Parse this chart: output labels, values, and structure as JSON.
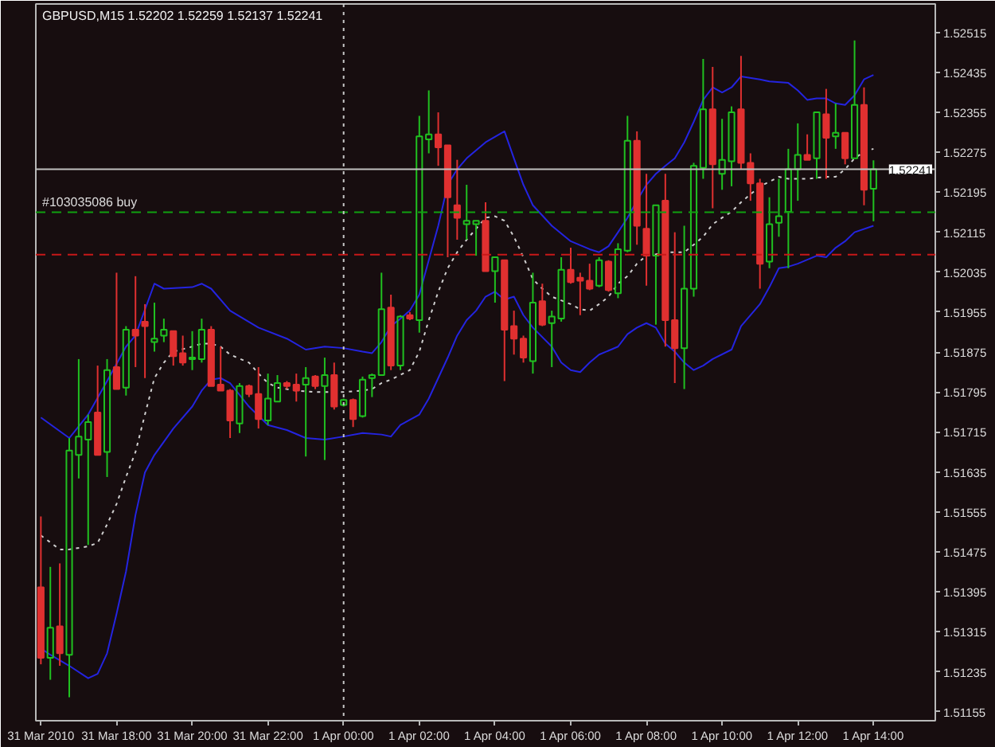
{
  "chart_data": {
    "type": "candlestick",
    "title": "GBPUSD,M15 1.52202 1.52259 1.52137 1.52241",
    "x": [
      "2010-03-31T16:00",
      "2010-03-31T16:15",
      "2010-03-31T16:30",
      "2010-03-31T16:45",
      "2010-03-31T17:00",
      "2010-03-31T17:15",
      "2010-03-31T17:30",
      "2010-03-31T17:45",
      "2010-03-31T18:00",
      "2010-03-31T18:15",
      "2010-03-31T18:30",
      "2010-03-31T18:45",
      "2010-03-31T19:00",
      "2010-03-31T19:15",
      "2010-03-31T19:30",
      "2010-03-31T19:45",
      "2010-03-31T20:00",
      "2010-03-31T20:15",
      "2010-03-31T20:30",
      "2010-03-31T20:45",
      "2010-03-31T21:00",
      "2010-03-31T21:15",
      "2010-03-31T21:30",
      "2010-03-31T21:45",
      "2010-03-31T22:00",
      "2010-03-31T22:15",
      "2010-03-31T22:30",
      "2010-03-31T22:45",
      "2010-03-31T23:00",
      "2010-03-31T23:15",
      "2010-03-31T23:30",
      "2010-03-31T23:45",
      "2010-04-01T00:00",
      "2010-04-01T00:15",
      "2010-04-01T00:30",
      "2010-04-01T00:45",
      "2010-04-01T01:00",
      "2010-04-01T01:15",
      "2010-04-01T01:30",
      "2010-04-01T01:45",
      "2010-04-01T02:00",
      "2010-04-01T02:15",
      "2010-04-01T02:30",
      "2010-04-01T02:45",
      "2010-04-01T03:00",
      "2010-04-01T03:15",
      "2010-04-01T03:30",
      "2010-04-01T03:45",
      "2010-04-01T04:00",
      "2010-04-01T04:15",
      "2010-04-01T04:30",
      "2010-04-01T04:45",
      "2010-04-01T05:00",
      "2010-04-01T05:15",
      "2010-04-01T05:30",
      "2010-04-01T05:45",
      "2010-04-01T06:00",
      "2010-04-01T06:15",
      "2010-04-01T06:30",
      "2010-04-01T06:45",
      "2010-04-01T07:00",
      "2010-04-01T07:15",
      "2010-04-01T07:30",
      "2010-04-01T07:45",
      "2010-04-01T08:00",
      "2010-04-01T08:15",
      "2010-04-01T08:30",
      "2010-04-01T08:45",
      "2010-04-01T09:00",
      "2010-04-01T09:15",
      "2010-04-01T09:30",
      "2010-04-01T09:45",
      "2010-04-01T10:00",
      "2010-04-01T10:15",
      "2010-04-01T10:30",
      "2010-04-01T10:45",
      "2010-04-01T11:00",
      "2010-04-01T11:15",
      "2010-04-01T11:30",
      "2010-04-01T11:45",
      "2010-04-01T12:00",
      "2010-04-01T12:15",
      "2010-04-01T12:30",
      "2010-04-01T12:45",
      "2010-04-01T13:00",
      "2010-04-01T13:15",
      "2010-04-01T13:30",
      "2010-04-01T13:45",
      "2010-04-01T14:00"
    ],
    "ohlc": [
      [
        1.51404,
        1.51546,
        1.5125,
        1.51263
      ],
      [
        1.51263,
        1.51445,
        1.51219,
        1.51323
      ],
      [
        1.51326,
        1.51452,
        1.51247,
        1.51272
      ],
      [
        1.51269,
        1.51703,
        1.51184,
        1.51678
      ],
      [
        1.51669,
        1.51861,
        1.51622,
        1.51706
      ],
      [
        1.517,
        1.5175,
        1.51489,
        1.51735
      ],
      [
        1.51754,
        1.51848,
        1.51669,
        1.51669
      ],
      [
        1.51675,
        1.51861,
        1.51625,
        1.51839
      ],
      [
        1.51845,
        1.52034,
        1.51801,
        1.51801
      ],
      [
        1.51804,
        1.51927,
        1.51788,
        1.5192
      ],
      [
        1.5192,
        1.52027,
        1.51845,
        1.51908
      ],
      [
        1.51936,
        1.51971,
        1.51823,
        1.51927
      ],
      [
        1.51895,
        1.51974,
        1.51876,
        1.51902
      ],
      [
        1.51908,
        1.51942,
        1.51895,
        1.5192
      ],
      [
        1.51917,
        1.51917,
        1.51848,
        1.51867
      ],
      [
        1.51873,
        1.51908,
        1.51848,
        1.51854
      ],
      [
        1.51861,
        1.51917,
        1.51839,
        1.51864
      ],
      [
        1.51861,
        1.51942,
        1.51854,
        1.5192
      ],
      [
        1.5192,
        1.51927,
        1.51807,
        1.51807
      ],
      [
        1.5181,
        1.51886,
        1.51798,
        1.51798
      ],
      [
        1.51798,
        1.51801,
        1.51703,
        1.51738
      ],
      [
        1.51732,
        1.51813,
        1.51713,
        1.51807
      ],
      [
        1.51807,
        1.5181,
        1.51785,
        1.51791
      ],
      [
        1.51791,
        1.51845,
        1.51722,
        1.51741
      ],
      [
        1.51738,
        1.51832,
        1.51729,
        1.51782
      ],
      [
        1.51776,
        1.51829,
        1.51776,
        1.51813
      ],
      [
        1.51813,
        1.51817,
        1.51801,
        1.51807
      ],
      [
        1.5181,
        1.51832,
        1.51776,
        1.51798
      ],
      [
        1.5181,
        1.51845,
        1.51666,
        1.51823
      ],
      [
        1.51826,
        1.51829,
        1.51801,
        1.51807
      ],
      [
        1.51807,
        1.51864,
        1.51659,
        1.51829
      ],
      [
        1.51829,
        1.51854,
        1.5176,
        1.51766
      ],
      [
        1.51769,
        1.51782,
        1.51766,
        1.51779
      ],
      [
        1.51779,
        1.51782,
        1.51725,
        1.51741
      ],
      [
        1.51747,
        1.51826,
        1.51744,
        1.5182
      ],
      [
        1.51823,
        1.51832,
        1.51785,
        1.51829
      ],
      [
        1.51829,
        1.52034,
        1.51829,
        1.51961
      ],
      [
        1.51964,
        1.5199,
        1.51839,
        1.51848
      ],
      [
        1.51848,
        1.51949,
        1.51839,
        1.51946
      ],
      [
        1.51949,
        1.51955,
        1.51939,
        1.51942
      ],
      [
        1.51939,
        1.52348,
        1.51914,
        1.52307
      ],
      [
        1.52301,
        1.52399,
        1.52273,
        1.52311
      ],
      [
        1.52311,
        1.52355,
        1.52248,
        1.52285
      ],
      [
        1.52289,
        1.52289,
        1.52065,
        1.52185
      ],
      [
        1.52169,
        1.5226,
        1.521,
        1.52144
      ],
      [
        1.52131,
        1.5221,
        1.521,
        1.52138
      ],
      [
        1.52131,
        1.52138,
        1.52068,
        1.52138
      ],
      [
        1.52138,
        1.52175,
        1.52037,
        1.52037
      ],
      [
        1.52037,
        1.52065,
        1.51974,
        1.52065
      ],
      [
        1.52059,
        1.52059,
        1.51817,
        1.5192
      ],
      [
        1.51927,
        1.51958,
        1.5187,
        1.51902
      ],
      [
        1.51902,
        1.51908,
        1.51854,
        1.51864
      ],
      [
        1.51857,
        1.52034,
        1.51832,
        1.51974
      ],
      [
        1.51977,
        1.52012,
        1.51927,
        1.5193
      ],
      [
        1.51933,
        1.51958,
        1.51845,
        1.51946
      ],
      [
        1.51942,
        1.52065,
        1.51936,
        1.5204
      ],
      [
        1.5204,
        1.52084,
        1.52012,
        1.52015
      ],
      [
        1.52024,
        1.52034,
        1.51949,
        1.52018
      ],
      [
        1.52018,
        1.52052,
        1.51999,
        1.52002
      ],
      [
        1.52008,
        1.52065,
        1.52005,
        1.52059
      ],
      [
        1.52056,
        1.52059,
        1.51996,
        1.51999
      ],
      [
        1.51993,
        1.52093,
        1.51983,
        1.52081
      ],
      [
        1.52078,
        1.52348,
        1.52075,
        1.52298
      ],
      [
        1.52298,
        1.52317,
        1.5209,
        1.52128
      ],
      [
        1.52122,
        1.52232,
        1.52008,
        1.52068
      ],
      [
        1.52068,
        1.52169,
        1.5193,
        1.52169
      ],
      [
        1.52178,
        1.52232,
        1.51886,
        1.51939
      ],
      [
        1.51939,
        1.52115,
        1.51813,
        1.51883
      ],
      [
        1.51883,
        1.52128,
        1.51801,
        1.52002
      ],
      [
        1.52002,
        1.52254,
        1.51986,
        1.52248
      ],
      [
        1.52244,
        1.52462,
        1.52222,
        1.52361
      ],
      [
        1.52361,
        1.52446,
        1.52163,
        1.52251
      ],
      [
        1.52232,
        1.52342,
        1.522,
        1.5226
      ],
      [
        1.52257,
        1.52367,
        1.52207,
        1.52355
      ],
      [
        1.52361,
        1.52468,
        1.52241,
        1.52254
      ],
      [
        1.52254,
        1.52273,
        1.52178,
        1.52213
      ],
      [
        1.52213,
        1.52222,
        1.52002,
        1.52052
      ],
      [
        1.52056,
        1.52185,
        1.52043,
        1.52131
      ],
      [
        1.52134,
        1.52222,
        1.52106,
        1.52147
      ],
      [
        1.52156,
        1.52282,
        1.52043,
        1.52241
      ],
      [
        1.52241,
        1.52333,
        1.52178,
        1.5227
      ],
      [
        1.5227,
        1.52311,
        1.5226,
        1.5226
      ],
      [
        1.52263,
        1.52355,
        1.52222,
        1.52355
      ],
      [
        1.52351,
        1.52402,
        1.52222,
        1.52304
      ],
      [
        1.52307,
        1.52373,
        1.52282,
        1.52314
      ],
      [
        1.52314,
        1.52314,
        1.52251,
        1.52263
      ],
      [
        1.52263,
        1.52499,
        1.52263,
        1.5237
      ],
      [
        1.5237,
        1.52405,
        1.52169,
        1.522
      ],
      [
        1.52202,
        1.52259,
        1.52137,
        1.52241
      ]
    ],
    "colors": [
      "#e03030",
      "#20c020",
      "#e03030",
      "#20c020",
      "#20c020",
      "#20c020",
      "#e03030",
      "#20c020",
      "#e03030",
      "#20c020",
      "#e03030",
      "#e03030",
      "#20c020",
      "#20c020",
      "#e03030",
      "#e03030",
      "#20c020",
      "#20c020",
      "#e03030",
      "#e03030",
      "#e03030",
      "#20c020",
      "#e03030",
      "#e03030",
      "#20c020",
      "#20c020",
      "#e03030",
      "#e03030",
      "#20c020",
      "#e03030",
      "#20c020",
      "#e03030",
      "#20c020",
      "#e03030",
      "#20c020",
      "#20c020",
      "#20c020",
      "#e03030",
      "#20c020",
      "#e03030",
      "#20c020",
      "#20c020",
      "#e03030",
      "#e03030",
      "#e03030",
      "#20c020",
      "#20c020",
      "#e03030",
      "#20c020",
      "#e03030",
      "#e03030",
      "#e03030",
      "#20c020",
      "#e03030",
      "#20c020",
      "#20c020",
      "#e03030",
      "#e03030",
      "#e03030",
      "#20c020",
      "#e03030",
      "#20c020",
      "#20c020",
      "#e03030",
      "#e03030",
      "#20c020",
      "#e03030",
      "#e03030",
      "#20c020",
      "#20c020",
      "#20c020",
      "#e03030",
      "#20c020",
      "#20c020",
      "#e03030",
      "#e03030",
      "#e03030",
      "#20c020",
      "#20c020",
      "#20c020",
      "#20c020",
      "#e03030",
      "#20c020",
      "#e03030",
      "#20c020",
      "#e03030",
      "#20c020",
      "#e03030",
      "#20c020"
    ],
    "series": [
      {
        "type": "line",
        "color": "#2424e0",
        "line_style": "solid",
        "x": [
          "2010-03-31T16:00",
          "2010-03-31T16:45",
          "2010-03-31T17:15",
          "2010-03-31T17:45",
          "2010-03-31T18:15",
          "2010-03-31T18:30",
          "2010-03-31T19:00",
          "2010-03-31T19:15",
          "2010-03-31T20:00",
          "2010-03-31T20:15",
          "2010-03-31T20:30",
          "2010-03-31T21:00",
          "2010-03-31T21:45",
          "2010-03-31T22:30",
          "2010-03-31T23:00",
          "2010-03-31T23:30",
          "2010-04-01T00:00",
          "2010-04-01T00:30",
          "2010-04-01T00:45",
          "2010-04-01T01:00",
          "2010-04-01T01:15",
          "2010-04-01T01:30",
          "2010-04-01T01:45",
          "2010-04-01T02:00",
          "2010-04-01T02:30",
          "2010-04-01T02:45",
          "2010-04-01T03:00",
          "2010-04-01T03:15",
          "2010-04-01T03:30",
          "2010-04-01T03:45",
          "2010-04-01T04:15",
          "2010-04-01T04:30",
          "2010-04-01T04:45",
          "2010-04-01T05:00",
          "2010-04-01T05:30",
          "2010-04-01T06:00",
          "2010-04-01T06:30",
          "2010-04-01T06:45",
          "2010-04-01T07:00",
          "2010-04-01T07:15",
          "2010-04-01T07:30",
          "2010-04-01T07:45",
          "2010-04-01T08:00",
          "2010-04-01T08:15",
          "2010-04-01T08:30",
          "2010-04-01T08:45",
          "2010-04-01T09:00",
          "2010-04-01T09:15",
          "2010-04-01T09:30",
          "2010-04-01T09:45",
          "2010-04-01T10:00",
          "2010-04-01T10:15",
          "2010-04-01T10:30",
          "2010-04-01T11:00",
          "2010-04-01T11:15",
          "2010-04-01T11:45",
          "2010-04-01T12:00",
          "2010-04-01T12:15",
          "2010-04-01T12:30",
          "2010-04-01T12:45",
          "2010-04-01T13:00",
          "2010-04-01T13:15",
          "2010-04-01T13:30",
          "2010-04-01T13:45",
          "2010-04-01T14:00"
        ],
        "values": [
          1.51744,
          1.51703,
          1.5175,
          1.51817,
          1.51886,
          1.51908,
          1.52012,
          1.52002,
          1.52005,
          1.52012,
          1.52002,
          1.51958,
          1.51924,
          1.51902,
          1.5188,
          1.51886,
          1.51883,
          1.51876,
          1.51873,
          1.51895,
          1.51927,
          1.51942,
          1.51958,
          1.5199,
          1.52128,
          1.5221,
          1.52241,
          1.52263,
          1.52279,
          1.52295,
          1.52317,
          1.52263,
          1.5221,
          1.52169,
          1.52128,
          1.52097,
          1.52081,
          1.52075,
          1.52087,
          1.52115,
          1.52144,
          1.52178,
          1.5221,
          1.52232,
          1.52248,
          1.52263,
          1.52295,
          1.52336,
          1.5238,
          1.52405,
          1.52395,
          1.52405,
          1.52427,
          1.52421,
          1.52417,
          1.52414,
          1.52399,
          1.5238,
          1.52383,
          1.52383,
          1.52373,
          1.5237,
          1.52389,
          1.52421,
          1.5243
        ]
      },
      {
        "type": "line",
        "color": "#d0d0d0",
        "line_style": "dotted",
        "x": [
          "2010-03-31T16:00",
          "2010-03-31T16:30",
          "2010-03-31T16:45",
          "2010-03-31T17:15",
          "2010-03-31T17:30",
          "2010-03-31T17:45",
          "2010-03-31T18:00",
          "2010-03-31T18:15",
          "2010-03-31T18:30",
          "2010-03-31T18:45",
          "2010-03-31T19:00",
          "2010-03-31T19:15",
          "2010-03-31T19:30",
          "2010-03-31T20:00",
          "2010-03-31T20:15",
          "2010-03-31T20:30",
          "2010-03-31T20:45",
          "2010-03-31T21:00",
          "2010-03-31T21:30",
          "2010-03-31T21:45",
          "2010-03-31T22:00",
          "2010-03-31T22:15",
          "2010-03-31T22:45",
          "2010-03-31T23:15",
          "2010-03-31T23:45",
          "2010-04-01T00:00",
          "2010-04-01T00:30",
          "2010-04-01T00:45",
          "2010-04-01T01:00",
          "2010-04-01T01:15",
          "2010-04-01T01:45",
          "2010-04-01T02:00",
          "2010-04-01T02:15",
          "2010-04-01T02:30",
          "2010-04-01T02:45",
          "2010-04-01T03:00",
          "2010-04-01T03:15",
          "2010-04-01T03:30",
          "2010-04-01T03:45",
          "2010-04-01T04:00",
          "2010-04-01T04:15",
          "2010-04-01T04:30",
          "2010-04-01T04:45",
          "2010-04-01T05:00",
          "2010-04-01T05:15",
          "2010-04-01T05:30",
          "2010-04-01T06:00",
          "2010-04-01T06:15",
          "2010-04-01T06:30",
          "2010-04-01T06:45",
          "2010-04-01T07:00",
          "2010-04-01T07:15",
          "2010-04-01T07:30",
          "2010-04-01T07:45",
          "2010-04-01T08:00",
          "2010-04-01T08:15",
          "2010-04-01T08:30",
          "2010-04-01T09:00",
          "2010-04-01T09:15",
          "2010-04-01T09:30",
          "2010-04-01T09:45",
          "2010-04-01T10:00",
          "2010-04-01T10:15",
          "2010-04-01T10:30",
          "2010-04-01T10:45",
          "2010-04-01T11:00",
          "2010-04-01T11:15",
          "2010-04-01T11:30",
          "2010-04-01T11:45",
          "2010-04-01T12:15",
          "2010-04-01T12:45",
          "2010-04-01T13:00",
          "2010-04-01T13:15",
          "2010-04-01T13:30",
          "2010-04-01T13:45",
          "2010-04-01T14:00"
        ],
        "values": [
          1.51508,
          1.5148,
          1.5148,
          1.51486,
          1.51493,
          1.5153,
          1.51571,
          1.51625,
          1.51675,
          1.5175,
          1.51823,
          1.51854,
          1.51876,
          1.51886,
          1.51892,
          1.51892,
          1.51886,
          1.5187,
          1.51854,
          1.51832,
          1.51813,
          1.51804,
          1.51798,
          1.51795,
          1.51795,
          1.51795,
          1.51798,
          1.51801,
          1.51813,
          1.5182,
          1.51839,
          1.51876,
          1.51939,
          1.51996,
          1.52043,
          1.52075,
          1.521,
          1.52122,
          1.52144,
          1.52147,
          1.52138,
          1.52106,
          1.52065,
          1.52021,
          1.52002,
          1.51986,
          1.51971,
          1.51961,
          1.51958,
          1.51971,
          1.51986,
          1.52012,
          1.52027,
          1.52052,
          1.52068,
          1.52071,
          1.52075,
          1.52075,
          1.5209,
          1.52106,
          1.52131,
          1.52144,
          1.52156,
          1.52175,
          1.52191,
          1.52207,
          1.52216,
          1.52226,
          1.52222,
          1.52222,
          1.52226,
          1.52226,
          1.52241,
          1.52263,
          1.52276,
          1.52282
        ]
      },
      {
        "type": "line",
        "color": "#2424e0",
        "line_style": "solid",
        "x": [
          "2010-03-31T16:00",
          "2010-03-31T16:15",
          "2010-03-31T16:45",
          "2010-03-31T17:15",
          "2010-03-31T17:30",
          "2010-03-31T17:45",
          "2010-03-31T18:00",
          "2010-03-31T18:15",
          "2010-03-31T18:30",
          "2010-03-31T18:45",
          "2010-03-31T19:00",
          "2010-03-31T19:30",
          "2010-03-31T20:00",
          "2010-03-31T20:15",
          "2010-03-31T20:30",
          "2010-03-31T20:45",
          "2010-03-31T21:00",
          "2010-03-31T21:30",
          "2010-03-31T22:00",
          "2010-03-31T22:30",
          "2010-03-31T23:00",
          "2010-03-31T23:30",
          "2010-04-01T00:00",
          "2010-04-01T00:30",
          "2010-04-01T01:00",
          "2010-04-01T01:15",
          "2010-04-01T01:30",
          "2010-04-01T02:00",
          "2010-04-01T02:15",
          "2010-04-01T02:30",
          "2010-04-01T02:45",
          "2010-04-01T03:00",
          "2010-04-01T03:15",
          "2010-04-01T03:30",
          "2010-04-01T03:45",
          "2010-04-01T04:00",
          "2010-04-01T04:15",
          "2010-04-01T04:30",
          "2010-04-01T04:45",
          "2010-04-01T05:00",
          "2010-04-01T05:30",
          "2010-04-01T05:45",
          "2010-04-01T06:00",
          "2010-04-01T06:15",
          "2010-04-01T06:30",
          "2010-04-01T06:45",
          "2010-04-01T07:15",
          "2010-04-01T07:30",
          "2010-04-01T07:45",
          "2010-04-01T08:00",
          "2010-04-01T08:15",
          "2010-04-01T08:30",
          "2010-04-01T08:45",
          "2010-04-01T09:00",
          "2010-04-01T09:15",
          "2010-04-01T09:30",
          "2010-04-01T09:45",
          "2010-04-01T10:15",
          "2010-04-01T10:30",
          "2010-04-01T11:00",
          "2010-04-01T11:15",
          "2010-04-01T11:30",
          "2010-04-01T11:45",
          "2010-04-01T12:00",
          "2010-04-01T12:30",
          "2010-04-01T12:45",
          "2010-04-01T13:00",
          "2010-04-01T13:15",
          "2010-04-01T13:30",
          "2010-04-01T14:00"
        ],
        "values": [
          1.51282,
          1.51269,
          1.51247,
          1.51222,
          1.51231,
          1.51272,
          1.51351,
          1.51436,
          1.51549,
          1.51634,
          1.51669,
          1.51722,
          1.51766,
          1.51798,
          1.5182,
          1.51823,
          1.51813,
          1.51766,
          1.51729,
          1.51719,
          1.51703,
          1.517,
          1.51706,
          1.51713,
          1.5171,
          1.51706,
          1.51729,
          1.5175,
          1.51782,
          1.51823,
          1.51864,
          1.51908,
          1.51939,
          1.51958,
          1.51986,
          1.51996,
          1.5198,
          1.51986,
          1.51949,
          1.51924,
          1.51886,
          1.51854,
          1.51839,
          1.51835,
          1.51854,
          1.5187,
          1.51886,
          1.51911,
          1.51924,
          1.51933,
          1.51924,
          1.51892,
          1.51876,
          1.51854,
          1.51839,
          1.51848,
          1.51861,
          1.5188,
          1.51927,
          1.51971,
          1.52005,
          1.52043,
          1.52046,
          1.52052,
          1.52068,
          1.52065,
          1.52084,
          1.52097,
          1.52115,
          1.52128
        ]
      }
    ],
    "xlim": [
      "2010-03-31T15:52",
      "2010-04-01T15:38"
    ],
    "xticks": [
      {
        "value": "2010-03-31T16:00",
        "label": "31 Mar 2010"
      },
      {
        "value": "2010-03-31T18:00",
        "label": "31 Mar 18:00"
      },
      {
        "value": "2010-03-31T20:00",
        "label": "31 Mar 20:00"
      },
      {
        "value": "2010-03-31T22:00",
        "label": "31 Mar 22:00"
      },
      {
        "value": "2010-04-01T00:00",
        "label": "1 Apr 00:00"
      },
      {
        "value": "2010-04-01T02:00",
        "label": "1 Apr 02:00"
      },
      {
        "value": "2010-04-01T04:00",
        "label": "1 Apr 04:00"
      },
      {
        "value": "2010-04-01T06:00",
        "label": "1 Apr 06:00"
      },
      {
        "value": "2010-04-01T08:00",
        "label": "1 Apr 08:00"
      },
      {
        "value": "2010-04-01T10:00",
        "label": "1 Apr 10:00"
      },
      {
        "value": "2010-04-01T12:00",
        "label": "1 Apr 12:00"
      },
      {
        "value": "2010-04-01T14:00",
        "label": "1 Apr 14:00"
      }
    ],
    "ylim": [
      1.51137,
      1.52572
    ],
    "yticks": [
      1.51155,
      1.51235,
      1.51315,
      1.51395,
      1.51475,
      1.51555,
      1.51635,
      1.51715,
      1.51795,
      1.51875,
      1.51955,
      1.52035,
      1.52115,
      1.52195,
      1.52275,
      1.52355,
      1.52435,
      1.52515
    ],
    "ref_lines": [
      {
        "axis": "y",
        "value": 1.52241,
        "label": "1.52241",
        "color": "#c0c0c0",
        "line_style": "solid"
      },
      {
        "axis": "y",
        "value": 1.52155,
        "label": "#103035086 buy",
        "color": "#10a010",
        "line_style": "dashed"
      },
      {
        "axis": "y",
        "value": 1.5207,
        "color": "#c81818",
        "line_style": "dashed"
      },
      {
        "axis": "x",
        "value": "2010-04-01T00:00",
        "color": "#c8c8c8",
        "line_style": "dotted"
      }
    ],
    "grid": false
  }
}
